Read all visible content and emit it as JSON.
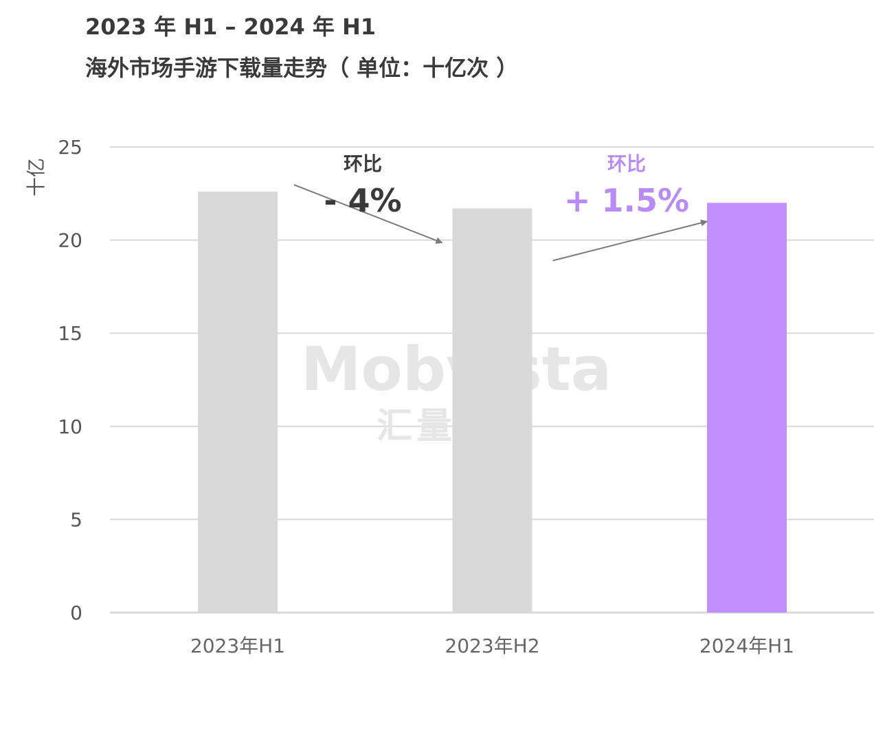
{
  "title": {
    "line1": "2023 年 H1 – 2024 年 H1",
    "line2": "海外市场手游下载量走势（ 单位：十亿次 ）"
  },
  "chart_data": {
    "type": "bar",
    "title": "2023 年 H1 – 2024 年 H1 海外市场手游下载量走势（ 单位：十亿次 ）",
    "ylabel": "十亿",
    "xlabel": "",
    "categories": [
      "2023年H1",
      "2023年H2",
      "2024年H1"
    ],
    "values": [
      22.6,
      21.7,
      22.0
    ],
    "ylim": [
      0,
      25
    ],
    "yticks": [
      0,
      5,
      10,
      15,
      20,
      25
    ],
    "grid": true,
    "bar_colors": [
      "#d9d9d9",
      "#d9d9d9",
      "#c18ffd"
    ],
    "annotations": [
      {
        "label": "环比",
        "value": "- 4%",
        "from": "2023年H1",
        "to": "2023年H2",
        "color": "#3a3a3a"
      },
      {
        "label": "环比",
        "value": "+ 1.5%",
        "from": "2023年H2",
        "to": "2024年H1",
        "color": "#b98cf5"
      }
    ]
  },
  "watermark": {
    "line1": "Mobvista",
    "line2": "汇量科技"
  },
  "colors": {
    "grid": "#d9d9d9",
    "axis_text": "#555555",
    "title": "#3a3a3a",
    "accent": "#c18ffd"
  }
}
